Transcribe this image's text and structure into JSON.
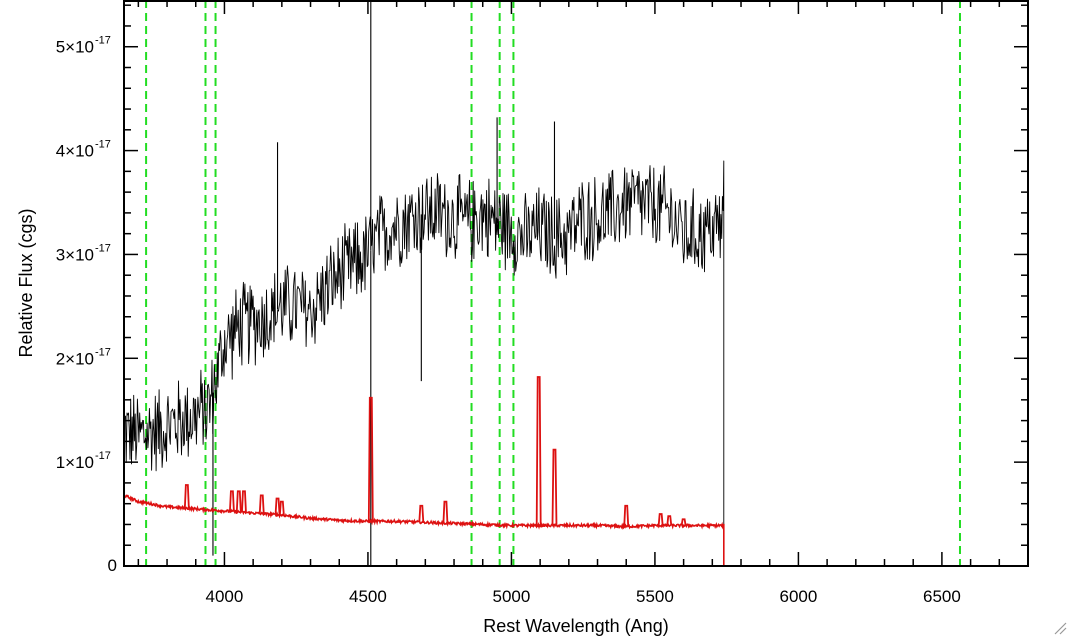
{
  "chart_data": {
    "type": "line",
    "xlabel": "Rest Wavelength (Ang)",
    "ylabel": "Relative Flux (cgs)",
    "xlim": [
      3650,
      6800
    ],
    "ylim": [
      0,
      5.45e-17
    ],
    "x_ticks": [
      {
        "value": 4000,
        "label": "4000"
      },
      {
        "value": 4500,
        "label": "4500"
      },
      {
        "value": 5000,
        "label": "5000"
      },
      {
        "value": 5500,
        "label": "5500"
      },
      {
        "value": 6000,
        "label": "6000"
      },
      {
        "value": 6500,
        "label": "6500"
      }
    ],
    "y_ticks": [
      {
        "value": 0,
        "label": "0",
        "exponent": ""
      },
      {
        "value": 1e-17,
        "label": "1×10",
        "exponent": "-17"
      },
      {
        "value": 2e-17,
        "label": "2×10",
        "exponent": "-17"
      },
      {
        "value": 3e-17,
        "label": "3×10",
        "exponent": "-17"
      },
      {
        "value": 4e-17,
        "label": "4×10",
        "exponent": "-17"
      },
      {
        "value": 5e-17,
        "label": "5×10",
        "exponent": "-17"
      }
    ],
    "reference_lines": {
      "color": "#22dd22",
      "style": "dashed",
      "x": [
        3727,
        3934,
        3969,
        4861,
        4959,
        5007,
        6563
      ]
    },
    "series": [
      {
        "color": "#000000",
        "style": "noisy",
        "x": [
          3650,
          3700,
          3750,
          3800,
          3850,
          3900,
          3950,
          4000,
          4050,
          4100,
          4150,
          4200,
          4250,
          4300,
          4350,
          4400,
          4450,
          4500,
          4550,
          4600,
          4650,
          4700,
          4750,
          4800,
          4850,
          4900,
          4950,
          5000,
          5050,
          5100,
          5150,
          5200,
          5250,
          5300,
          5350,
          5400,
          5450,
          5500,
          5550,
          5600,
          5650,
          5700,
          5740,
          5741,
          6800
        ],
        "y": [
          1.3e-17,
          1.25e-17,
          1.3e-17,
          1.35e-17,
          1.4e-17,
          1.45e-17,
          1.55e-17,
          2.15e-17,
          2.3e-17,
          2.35e-17,
          2.4e-17,
          2.5e-17,
          2.5e-17,
          2.45e-17,
          2.65e-17,
          2.8e-17,
          2.9e-17,
          3e-17,
          3.2e-17,
          3.3e-17,
          3.35e-17,
          3.4e-17,
          3.4e-17,
          3.35e-17,
          3.3e-17,
          3.4e-17,
          3.3e-17,
          3.25e-17,
          3.15e-17,
          3.25e-17,
          3.15e-17,
          3.2e-17,
          3.35e-17,
          3.35e-17,
          3.4e-17,
          3.5e-17,
          3.5e-17,
          3.45e-17,
          3.4e-17,
          3.2e-17,
          3.2e-17,
          3.25e-17,
          3.3e-17,
          0,
          0
        ]
      },
      {
        "color": "#dd1111",
        "style": "smooth",
        "x": [
          3650,
          3700,
          3800,
          3900,
          4000,
          4100,
          4200,
          4300,
          4400,
          4500,
          4600,
          4700,
          4800,
          4900,
          5000,
          5100,
          5200,
          5300,
          5400,
          5500,
          5600,
          5700,
          5740,
          5741,
          6800
        ],
        "y": [
          6.8e-18,
          6.2e-18,
          5.7e-18,
          5.5e-18,
          5.3e-18,
          5.1e-18,
          4.9e-18,
          4.6e-18,
          4.4e-18,
          4.3e-18,
          4.3e-18,
          4.2e-18,
          4.1e-18,
          4e-18,
          3.9e-18,
          3.9e-18,
          3.9e-18,
          3.9e-18,
          3.8e-18,
          3.9e-18,
          3.9e-18,
          3.9e-18,
          3.9e-18,
          0,
          0
        ]
      }
    ],
    "emission_lines": [
      {
        "x": 3869,
        "peak": 7.8e-18
      },
      {
        "x": 4026,
        "peak": 7.2e-18
      },
      {
        "x": 4050,
        "peak": 7.2e-18
      },
      {
        "x": 4068,
        "peak": 7.2e-18
      },
      {
        "x": 4130,
        "peak": 6.8e-18
      },
      {
        "x": 4185,
        "peak": 6.5e-18
      },
      {
        "x": 4200,
        "peak": 6.2e-18
      },
      {
        "x": 4510,
        "peak": 1.62e-17
      },
      {
        "x": 4686,
        "peak": 5.8e-18
      },
      {
        "x": 4770,
        "peak": 6.2e-18
      },
      {
        "x": 5095,
        "peak": 1.82e-17
      },
      {
        "x": 5150,
        "peak": 1.12e-17
      },
      {
        "x": 5400,
        "peak": 5.8e-18
      },
      {
        "x": 5520,
        "peak": 5e-18
      },
      {
        "x": 5550,
        "peak": 4.8e-18
      },
      {
        "x": 5600,
        "peak": 4.5e-18
      }
    ]
  }
}
